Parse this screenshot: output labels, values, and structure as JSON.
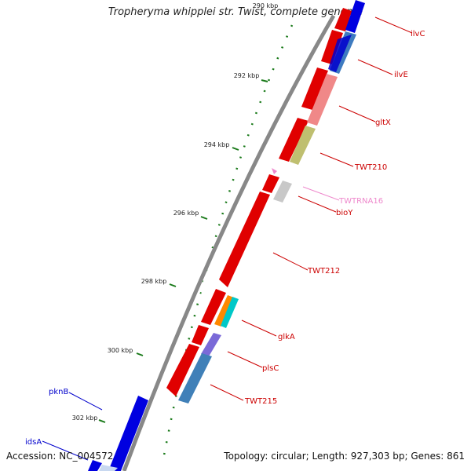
{
  "title": "Tropheryma whipplei str. Twist, complete genome",
  "accession": "Accession: NC_004572",
  "summary": "Topology: circular; Length: 927,303 bp; Genes: 861",
  "ticks": [
    {
      "label": "290 kbp"
    },
    {
      "label": "292 kbp"
    },
    {
      "label": "294 kbp"
    },
    {
      "label": "296 kbp"
    },
    {
      "label": "298 kbp"
    },
    {
      "label": "300 kbp"
    },
    {
      "label": "302 kbp"
    }
  ],
  "genes": [
    {
      "name": "ilvC",
      "color": "#cc0000"
    },
    {
      "name": "ilvE",
      "color": "#cc0000"
    },
    {
      "name": "gltX",
      "color": "#cc0000"
    },
    {
      "name": "TWT210",
      "color": "#cc0000"
    },
    {
      "name": "TWTRNA16",
      "color": "#ee88cc"
    },
    {
      "name": "bioY",
      "color": "#cc0000"
    },
    {
      "name": "TWT212",
      "color": "#cc0000"
    },
    {
      "name": "glkA",
      "color": "#cc0000"
    },
    {
      "name": "plsC",
      "color": "#cc0000"
    },
    {
      "name": "TWT215",
      "color": "#cc0000"
    },
    {
      "name": "pknB",
      "color": "#0000cc"
    },
    {
      "name": "idsA",
      "color": "#0000cc"
    }
  ]
}
